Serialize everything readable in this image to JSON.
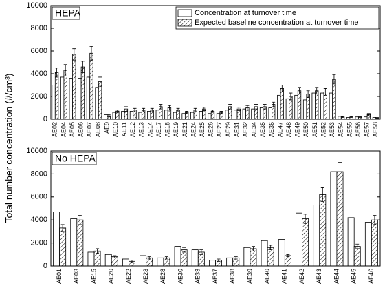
{
  "chart_data": [
    {
      "type": "bar",
      "panel_label": "HEPA",
      "ylabel": "Total number concentration (#/cm³)",
      "legend": "top-right",
      "categories": [
        "AE02",
        "AE04",
        "AE05",
        "AE06",
        "AE07",
        "AE08",
        "AE9",
        "AE10",
        "AE11",
        "AE12",
        "AE13",
        "AE14",
        "AE17",
        "AE18",
        "AE19",
        "AE21",
        "AE24",
        "AE25",
        "AE26",
        "AE27",
        "AE29",
        "AE31",
        "AE32",
        "AE34",
        "AE35",
        "AE36",
        "AE47",
        "AE48",
        "AE49",
        "AE50",
        "AE51",
        "AE52",
        "AE53",
        "AE54",
        "AE55",
        "AE56",
        "AE57",
        "AE58"
      ],
      "series": [
        {
          "name": "Concentration at turnover time",
          "color": "#ffffff",
          "hatch": false,
          "values": [
            3000,
            3700,
            3600,
            3600,
            3700,
            2800,
            400,
            600,
            700,
            700,
            600,
            700,
            800,
            800,
            600,
            500,
            600,
            700,
            500,
            500,
            800,
            800,
            900,
            900,
            1000,
            1000,
            2100,
            1800,
            2100,
            1700,
            2300,
            2300,
            2300,
            250,
            150,
            200,
            200,
            150
          ]
        },
        {
          "name": "Expected baseline concentration at turnover time",
          "color": "#ffffff",
          "hatch": true,
          "values": [
            4100,
            4300,
            5700,
            4600,
            5800,
            3300,
            300,
            700,
            900,
            800,
            800,
            800,
            1100,
            1000,
            800,
            600,
            800,
            900,
            700,
            600,
            1100,
            900,
            1000,
            1100,
            1100,
            1300,
            2700,
            2000,
            2500,
            2200,
            2500,
            2400,
            3500,
            200,
            200,
            200,
            400,
            100
          ],
          "errors": [
            400,
            500,
            500,
            500,
            600,
            400,
            100,
            100,
            200,
            150,
            150,
            150,
            200,
            200,
            150,
            100,
            150,
            150,
            100,
            100,
            200,
            150,
            200,
            200,
            200,
            200,
            300,
            300,
            300,
            300,
            300,
            300,
            400,
            50,
            50,
            50,
            100,
            50
          ]
        }
      ],
      "ylim": [
        0,
        10000
      ],
      "yticks": [
        0,
        2000,
        4000,
        6000,
        8000,
        10000
      ]
    },
    {
      "type": "bar",
      "panel_label": "No HEPA",
      "categories": [
        "AE01",
        "AE03",
        "AE15",
        "AE20",
        "AE22",
        "AE23",
        "AE28",
        "AE30",
        "AE33",
        "AE37",
        "AE38",
        "AE39",
        "AE40",
        "AE41",
        "AE42",
        "AE43",
        "AE44",
        "AE45",
        "AE46"
      ],
      "series": [
        {
          "color": "#ffffff",
          "hatch": false,
          "values": [
            4700,
            4100,
            1200,
            1000,
            600,
            900,
            700,
            1700,
            1400,
            500,
            700,
            1600,
            2200,
            2300,
            4600,
            5300,
            8200,
            4200,
            3800
          ]
        },
        {
          "color": "#ffffff",
          "hatch": true,
          "values": [
            3300,
            4000,
            1300,
            800,
            400,
            700,
            700,
            1400,
            1200,
            500,
            700,
            1500,
            1600,
            900,
            4100,
            6200,
            8200,
            1700,
            4000
          ],
          "errors": [
            300,
            400,
            200,
            100,
            100,
            100,
            100,
            200,
            200,
            100,
            100,
            200,
            200,
            100,
            400,
            600,
            800,
            200,
            400
          ]
        }
      ],
      "ylim": [
        0,
        10000
      ],
      "yticks": [
        0,
        2000,
        4000,
        6000,
        8000,
        10000
      ]
    }
  ]
}
